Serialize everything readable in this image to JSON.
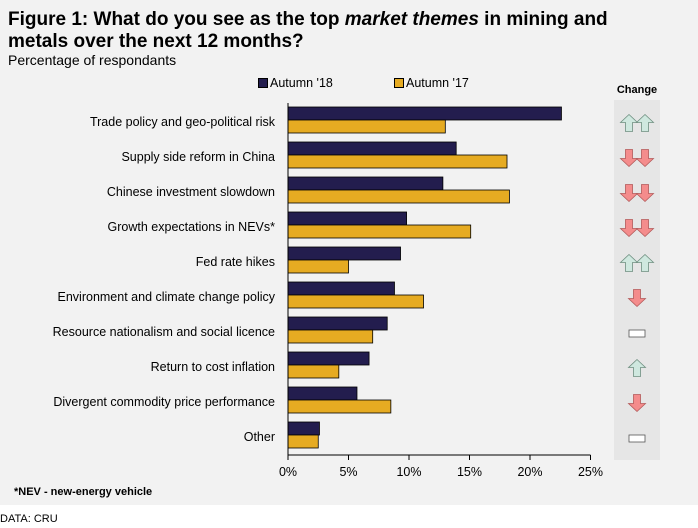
{
  "title_prefix": "Figure 1: What do you see as the top ",
  "title_emphasis": "market themes",
  "title_suffix": " in mining and metals over the next 12 months?",
  "subtitle": "Percentage of respondants",
  "change_header": "Change",
  "footnote": "*NEV - new-energy vehicle",
  "source": "DATA: CRU",
  "colors": {
    "autumn18": "#231d4e",
    "autumn17": "#e6ab22",
    "up": "#cfe8df",
    "down": "#f48c8c",
    "neutral": "#ffffff"
  },
  "chart_data": {
    "type": "bar",
    "orientation": "horizontal",
    "categories": [
      "Trade policy and geo-political risk",
      "Supply side reform in China",
      "Chinese investment slowdown",
      "Growth expectations in NEVs*",
      "Fed rate hikes",
      "Environment and climate change policy",
      "Resource nationalism and social licence",
      "Return to cost inflation",
      "Divergent commodity price performance",
      "Other"
    ],
    "series": [
      {
        "name": "Autumn '18",
        "values": [
          22.6,
          13.9,
          12.8,
          9.8,
          9.3,
          8.8,
          8.2,
          6.7,
          5.7,
          2.6
        ]
      },
      {
        "name": "Autumn '17",
        "values": [
          13.0,
          18.1,
          18.3,
          15.1,
          5.0,
          11.2,
          7.0,
          4.2,
          8.5,
          2.5
        ]
      }
    ],
    "change": [
      "up-double",
      "down-double",
      "down-double",
      "down-double",
      "up-double",
      "down",
      "neutral",
      "up",
      "down",
      "neutral"
    ],
    "x_ticks": [
      "0%",
      "5%",
      "10%",
      "15%",
      "20%",
      "25%"
    ],
    "xlim": [
      0,
      25
    ],
    "grid": false,
    "legend": "top"
  }
}
